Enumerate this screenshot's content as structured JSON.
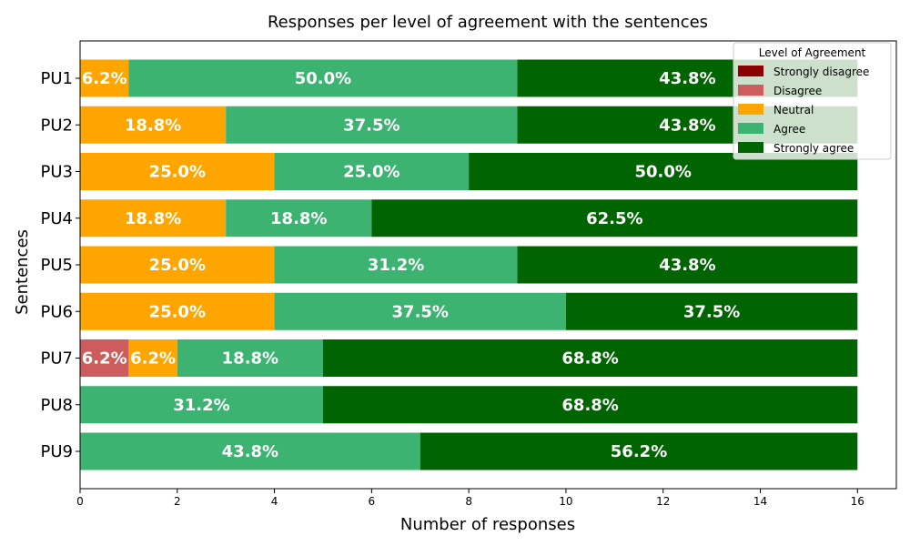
{
  "chart_data": {
    "type": "bar",
    "orientation": "horizontal",
    "stacked": true,
    "title": "Responses per level of agreement with the sentences",
    "xlabel": "Number of responses",
    "ylabel": "Sentences",
    "xlim": [
      0,
      16.8
    ],
    "xticks": [
      0,
      2,
      4,
      6,
      8,
      10,
      12,
      14,
      16
    ],
    "grid": false,
    "categories": [
      "PU1",
      "PU2",
      "PU3",
      "PU4",
      "PU5",
      "PU6",
      "PU7",
      "PU8",
      "PU9"
    ],
    "series": [
      {
        "name": "Strongly disagree",
        "color": "#8b0000",
        "values": [
          0,
          0,
          0,
          0,
          0,
          0,
          0,
          0,
          0
        ]
      },
      {
        "name": "Disagree",
        "color": "#cd5c5c",
        "values": [
          0,
          0,
          0,
          0,
          0,
          0,
          1,
          0,
          0
        ]
      },
      {
        "name": "Neutral",
        "color": "#ffa500",
        "values": [
          1,
          3,
          4,
          3,
          4,
          4,
          1,
          0,
          0
        ]
      },
      {
        "name": "Agree",
        "color": "#3cb371",
        "values": [
          8,
          6,
          4,
          3,
          5,
          6,
          3,
          5,
          7
        ]
      },
      {
        "name": "Strongly agree",
        "color": "#006400",
        "values": [
          7,
          7,
          8,
          10,
          7,
          6,
          11,
          11,
          9
        ]
      }
    ],
    "data_labels": [
      [
        "",
        "",
        "6.2%",
        "50.0%",
        "43.8%"
      ],
      [
        "",
        "",
        "18.8%",
        "37.5%",
        "43.8%"
      ],
      [
        "",
        "",
        "25.0%",
        "25.0%",
        "50.0%"
      ],
      [
        "",
        "",
        "18.8%",
        "18.8%",
        "62.5%"
      ],
      [
        "",
        "",
        "25.0%",
        "31.2%",
        "43.8%"
      ],
      [
        "",
        "",
        "25.0%",
        "37.5%",
        "37.5%"
      ],
      [
        "",
        "6.2%",
        "6.2%",
        "18.8%",
        "68.8%"
      ],
      [
        "",
        "",
        "",
        "31.2%",
        "68.8%"
      ],
      [
        "",
        "",
        "",
        "43.8%",
        "56.2%"
      ]
    ],
    "legend": {
      "title": "Level of Agreement",
      "placement": "top-right"
    }
  }
}
